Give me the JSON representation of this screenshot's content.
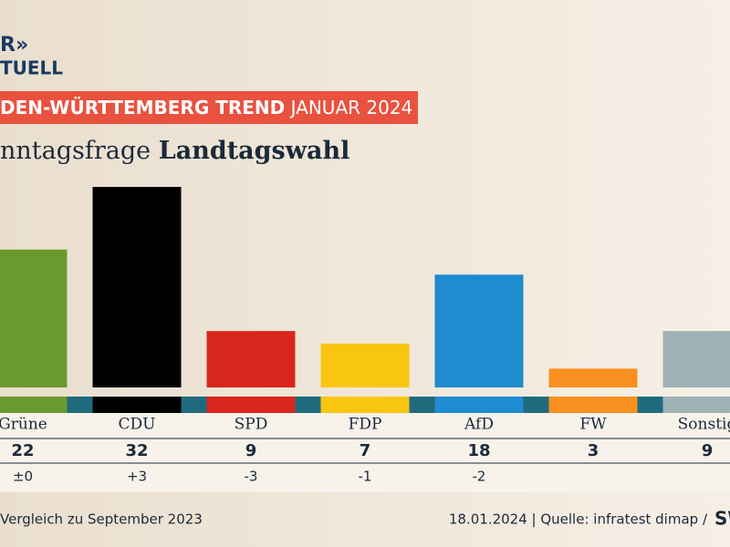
{
  "logo": {
    "line1": "R»",
    "line2": "TUELL"
  },
  "chart_data": {
    "type": "bar",
    "title_part1": "DEN-WÜRTTEMBERG TREND",
    "title_part2": "JANUAR 2024",
    "subtitle_part1": "nntagsfrage",
    "subtitle_part2": "Landtagswahl",
    "categories": [
      "Grüne",
      "CDU",
      "SPD",
      "FDP",
      "AfD",
      "FW",
      "Sonstig"
    ],
    "values": [
      22,
      32,
      9,
      7,
      18,
      3,
      9
    ],
    "colors": [
      "#6a9a2f",
      "#000000",
      "#d9261c",
      "#f8c511",
      "#1f8bd0",
      "#f7901e",
      "#9fb2b6"
    ],
    "change_labels": [
      "±0",
      "+3",
      "-3",
      "-1",
      "-2",
      null,
      null
    ]
  },
  "footer": {
    "left": "Vergleich zu September 2023",
    "right": "18.01.2024 | Quelle: infratest dimap /",
    "brand": "SW"
  }
}
